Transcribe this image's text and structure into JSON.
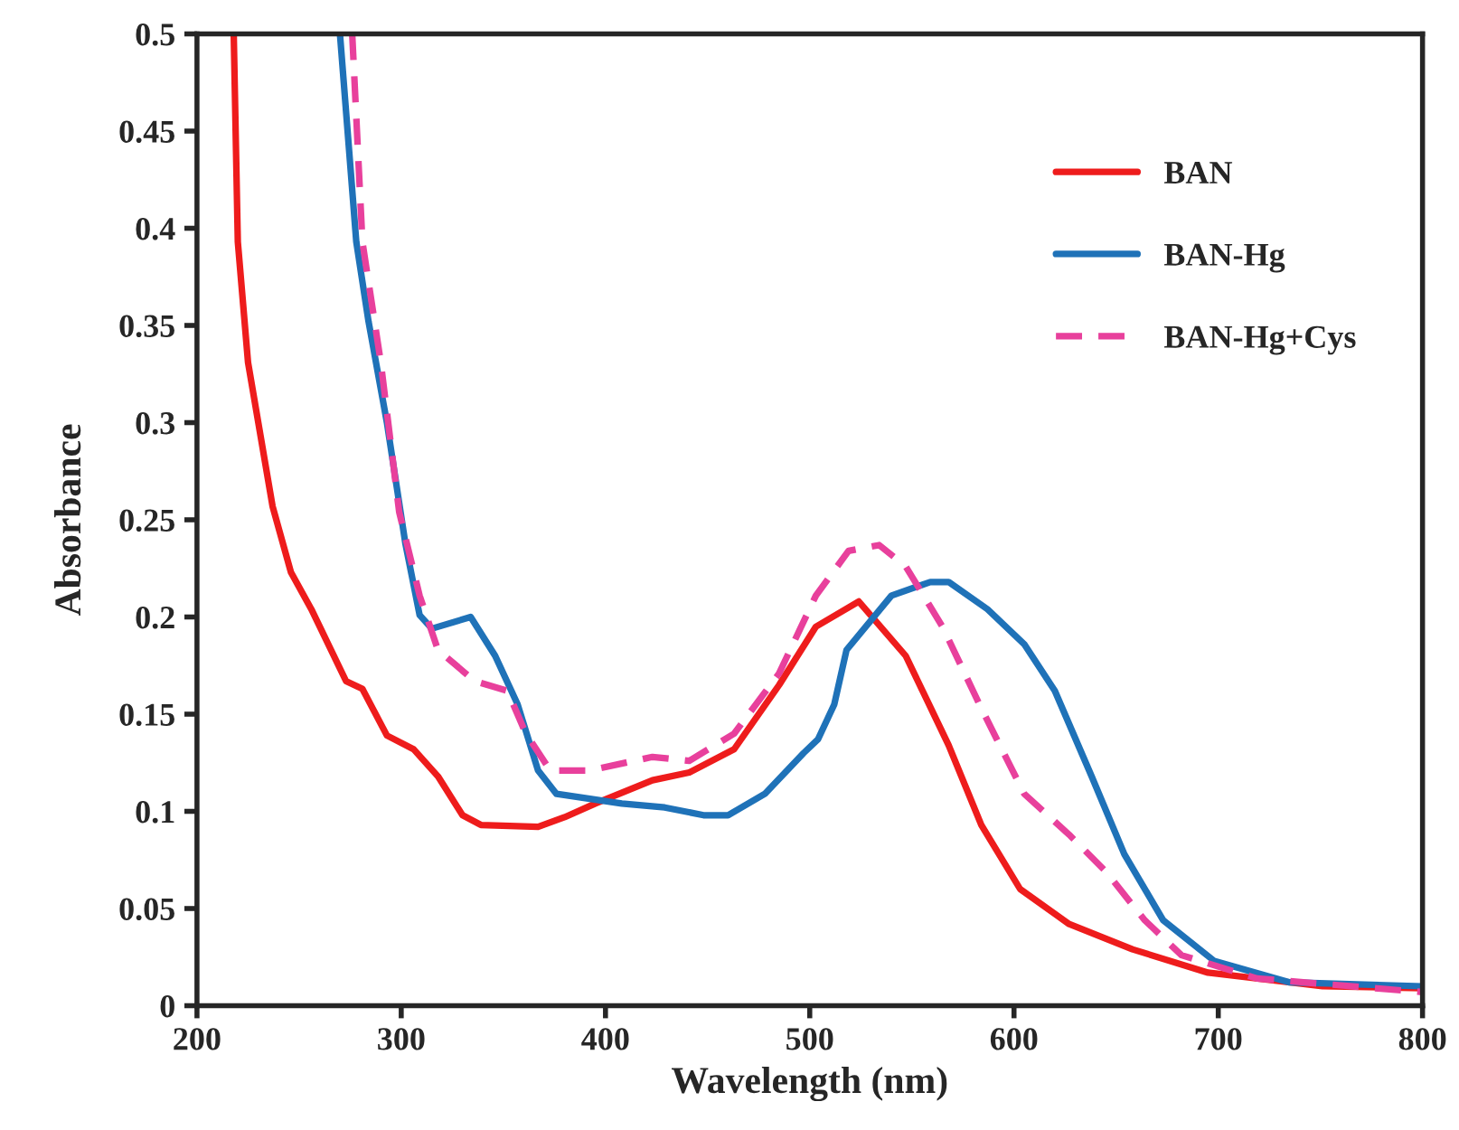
{
  "chart_data": {
    "type": "line",
    "xlabel": "Wavelength (nm)",
    "ylabel": "Absorbance",
    "xlim": [
      200,
      800
    ],
    "xticks": [
      200,
      300,
      400,
      500,
      600,
      700,
      800
    ],
    "ylim": [
      0,
      0.5
    ],
    "yticks": [
      0,
      0.05,
      0.1,
      0.15,
      0.2,
      0.25,
      0.3,
      0.35,
      0.4,
      0.45,
      0.5
    ],
    "grid": false,
    "legend": "top right",
    "marker": "none",
    "series": [
      {
        "name": "BAN",
        "color": "#ee1c1c",
        "line_style": "solid",
        "x": [
          218,
          220,
          225,
          237,
          246,
          256,
          273,
          281,
          293,
          306,
          318,
          330,
          339,
          367,
          380,
          395,
          423,
          441,
          463,
          485,
          503,
          524,
          547,
          568,
          584,
          603,
          627,
          658,
          695,
          751,
          800
        ],
        "values": [
          0.5,
          0.393,
          0.331,
          0.257,
          0.223,
          0.204,
          0.167,
          0.163,
          0.139,
          0.132,
          0.118,
          0.098,
          0.093,
          0.092,
          0.097,
          0.104,
          0.116,
          0.12,
          0.132,
          0.165,
          0.195,
          0.208,
          0.18,
          0.134,
          0.093,
          0.06,
          0.042,
          0.029,
          0.017,
          0.01,
          0.009
        ]
      },
      {
        "name": "BAN-Hg",
        "color": "#1f72b8",
        "line_style": "solid",
        "x": [
          270,
          278,
          284,
          293,
          302,
          309,
          315,
          334,
          346,
          357,
          367,
          376,
          408,
          429,
          448,
          460,
          478,
          497,
          504,
          512,
          518,
          540,
          559,
          568,
          587,
          605,
          620,
          638,
          654,
          673,
          698,
          735,
          800
        ],
        "values": [
          0.5,
          0.393,
          0.352,
          0.3,
          0.238,
          0.201,
          0.194,
          0.2,
          0.18,
          0.155,
          0.121,
          0.109,
          0.104,
          0.102,
          0.098,
          0.098,
          0.109,
          0.13,
          0.137,
          0.155,
          0.183,
          0.211,
          0.218,
          0.218,
          0.204,
          0.186,
          0.162,
          0.118,
          0.078,
          0.044,
          0.023,
          0.012,
          0.01
        ]
      },
      {
        "name": "BAN-Hg+Cys",
        "color": "#e8409c",
        "line_style": "dashed",
        "x": [
          276,
          281,
          290,
          299,
          309,
          318,
          336,
          352,
          361,
          373,
          392,
          423,
          441,
          463,
          485,
          503,
          519,
          534,
          547,
          565,
          584,
          605,
          627,
          645,
          664,
          682,
          719,
          800
        ],
        "values": [
          0.5,
          0.393,
          0.331,
          0.254,
          0.211,
          0.183,
          0.167,
          0.162,
          0.14,
          0.121,
          0.121,
          0.128,
          0.126,
          0.14,
          0.171,
          0.211,
          0.234,
          0.237,
          0.226,
          0.195,
          0.153,
          0.109,
          0.088,
          0.069,
          0.044,
          0.026,
          0.014,
          0.007
        ]
      }
    ]
  }
}
